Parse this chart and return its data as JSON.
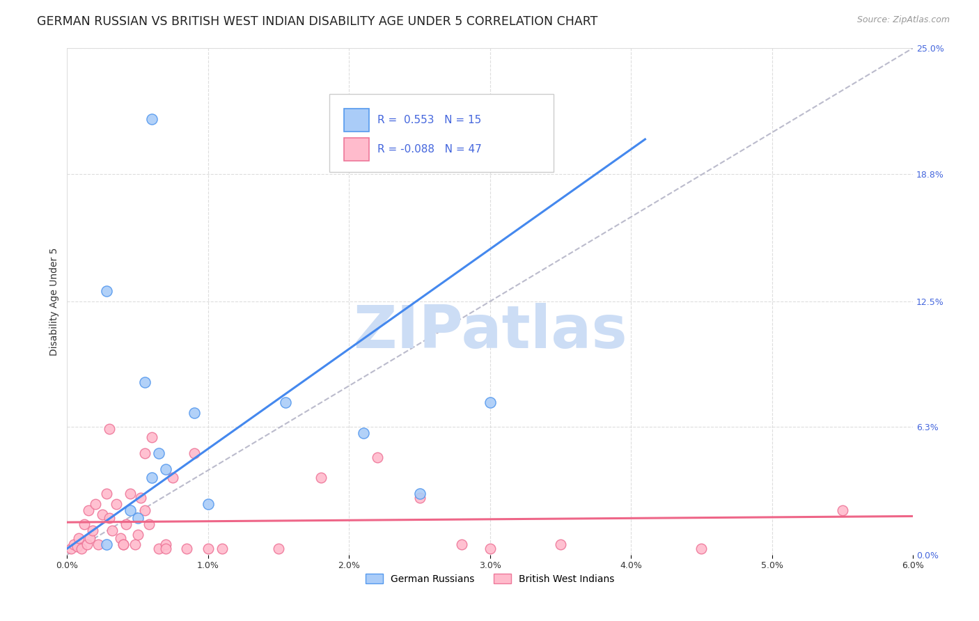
{
  "title": "GERMAN RUSSIAN VS BRITISH WEST INDIAN DISABILITY AGE UNDER 5 CORRELATION CHART",
  "source": "Source: ZipAtlas.com",
  "ylabel": "Disability Age Under 5",
  "xmin": 0.0,
  "xmax": 6.0,
  "ymin": 0.0,
  "ymax": 25.0,
  "xtick_vals": [
    0.0,
    1.0,
    2.0,
    3.0,
    4.0,
    5.0,
    6.0
  ],
  "xtick_labels": [
    "0.0%",
    "1.0%",
    "2.0%",
    "3.0%",
    "4.0%",
    "5.0%",
    "6.0%"
  ],
  "ytick_vals": [
    0.0,
    6.3,
    12.5,
    18.8,
    25.0
  ],
  "ytick_labels": [
    "0.0%",
    "6.3%",
    "12.5%",
    "18.8%",
    "25.0%"
  ],
  "hgrid_vals": [
    6.3,
    12.5,
    18.8,
    25.0
  ],
  "vgrid_vals": [
    1.0,
    2.0,
    3.0,
    4.0,
    5.0
  ],
  "gr_color_face": "#aaccf8",
  "gr_color_edge": "#5599ee",
  "bwi_color_face": "#ffbbcc",
  "bwi_color_edge": "#ee7799",
  "gr_line_color": "#4488ee",
  "bwi_line_color": "#ee6688",
  "diag_color": "#bbbbcc",
  "legend_r1": "R =  0.553",
  "legend_n1": "N = 15",
  "legend_r2": "R = -0.088",
  "legend_n2": "N = 47",
  "legend_text_color": "#4466dd",
  "watermark": "ZIPatlas",
  "watermark_color": "#ccddf5",
  "title_color": "#222222",
  "source_color": "#999999",
  "ylabel_color": "#333333",
  "tick_color": "#333333",
  "ytick_color": "#4466dd",
  "gr_line_x0": 0.0,
  "gr_line_y0": 0.3,
  "gr_line_x1": 4.1,
  "gr_line_y1": 20.5,
  "bwi_line_x0": 0.0,
  "bwi_line_y0": 1.6,
  "bwi_line_x1": 6.0,
  "bwi_line_y1": 1.9,
  "diag_x0": 0.0,
  "diag_y0": 0.0,
  "diag_x1": 6.0,
  "diag_y1": 25.0,
  "german_russian_x": [
    0.28,
    0.28,
    0.55,
    0.6,
    0.65,
    0.7,
    0.9,
    1.0,
    1.55,
    2.1,
    2.5,
    3.0,
    0.45,
    0.5,
    0.6
  ],
  "german_russian_y": [
    0.5,
    13.0,
    8.5,
    3.8,
    5.0,
    4.2,
    7.0,
    2.5,
    7.5,
    6.0,
    3.0,
    7.5,
    2.2,
    1.8,
    21.5
  ],
  "british_west_indian_x": [
    0.03,
    0.05,
    0.07,
    0.08,
    0.1,
    0.12,
    0.14,
    0.15,
    0.16,
    0.18,
    0.2,
    0.22,
    0.25,
    0.28,
    0.3,
    0.32,
    0.35,
    0.38,
    0.4,
    0.42,
    0.45,
    0.48,
    0.5,
    0.52,
    0.55,
    0.58,
    0.6,
    0.65,
    0.7,
    0.75,
    0.85,
    0.9,
    1.0,
    1.1,
    1.5,
    1.8,
    2.2,
    2.5,
    2.8,
    3.0,
    3.5,
    4.5,
    5.5,
    0.3,
    0.4,
    0.55,
    0.7
  ],
  "british_west_indian_y": [
    0.3,
    0.5,
    0.4,
    0.8,
    0.3,
    1.5,
    0.5,
    2.2,
    0.8,
    1.2,
    2.5,
    0.5,
    2.0,
    3.0,
    1.8,
    1.2,
    2.5,
    0.8,
    0.5,
    1.5,
    3.0,
    0.5,
    1.0,
    2.8,
    2.2,
    1.5,
    5.8,
    0.3,
    0.5,
    3.8,
    0.3,
    5.0,
    0.3,
    0.3,
    0.3,
    3.8,
    4.8,
    2.8,
    0.5,
    0.3,
    0.5,
    0.3,
    2.2,
    6.2,
    0.5,
    5.0,
    0.3
  ],
  "title_fontsize": 12.5,
  "axis_fontsize": 10,
  "tick_fontsize": 9,
  "source_fontsize": 9,
  "legend_fontsize": 11,
  "watermark_fontsize": 62
}
